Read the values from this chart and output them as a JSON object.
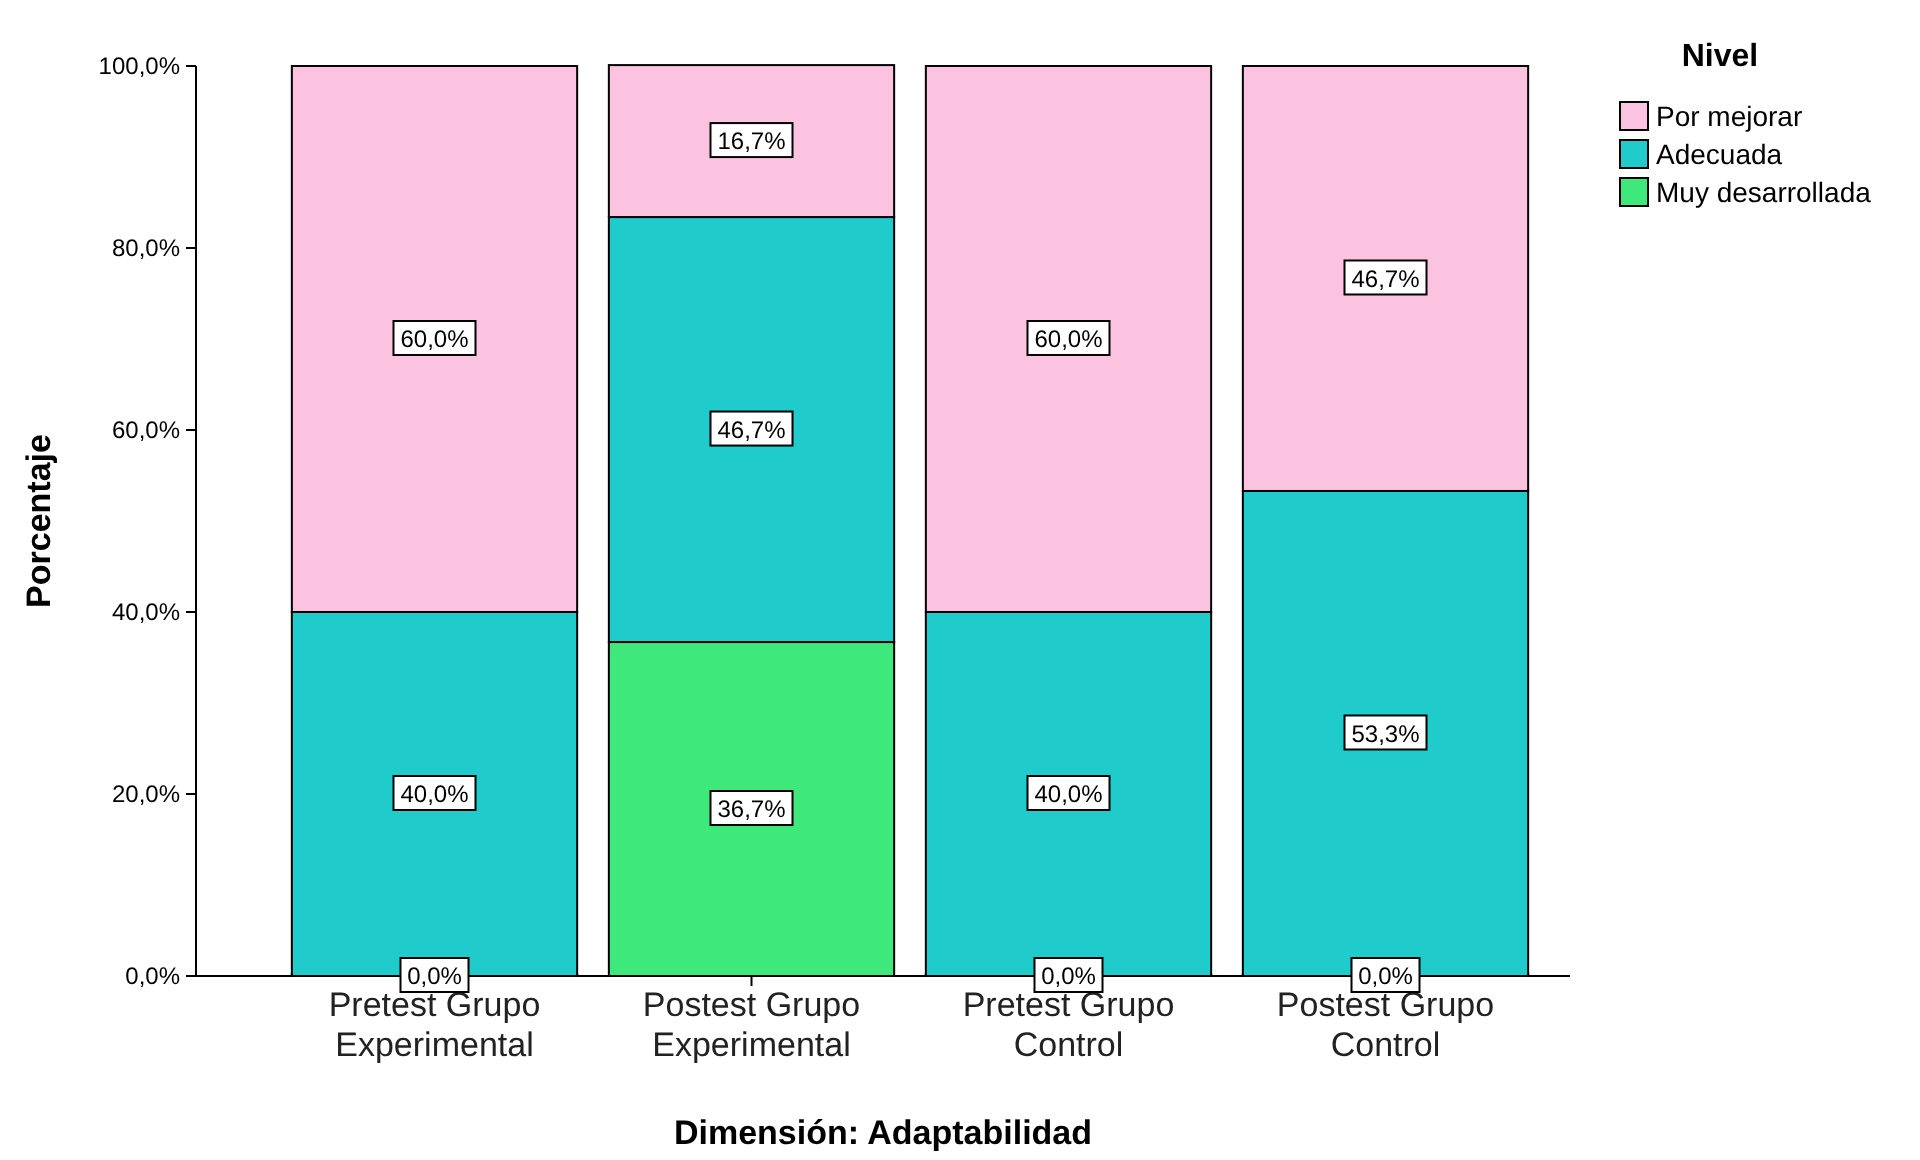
{
  "chart_data": {
    "type": "bar",
    "stacked": true,
    "xlabel": "Dimensión: Adaptabilidad",
    "ylabel": "Porcentaje",
    "legend_title": "Nivel",
    "legend": "top right",
    "categories": [
      "Pretest Grupo Experimental",
      "Postest Grupo Experimental",
      "Pretest Grupo Control",
      "Postest Grupo Control"
    ],
    "series": [
      {
        "name": "Muy desarrollada",
        "color": "#3fe87a",
        "values": [
          0,
          36.7,
          0,
          0
        ],
        "value_labels": [
          "0,0%",
          "36,7%",
          "0,0%",
          "0,0%"
        ]
      },
      {
        "name": "Adecuada",
        "color": "#1fcbcb",
        "values": [
          40,
          46.7,
          40,
          53.3
        ],
        "value_labels": [
          "40,0%",
          "46,7%",
          "40,0%",
          "53,3%"
        ]
      },
      {
        "name": "Por mejorar",
        "color": "#fbc3e0",
        "values": [
          60,
          16.7,
          60,
          46.7
        ],
        "value_labels": [
          "60,0%",
          "16,7%",
          "60,0%",
          "46,7%"
        ]
      }
    ],
    "ylim": [
      0,
      100
    ],
    "yticks": [
      {
        "value": 0,
        "label": "0,0%"
      },
      {
        "value": 20,
        "label": "20,0%"
      },
      {
        "value": 40,
        "label": "40,0%"
      },
      {
        "value": 60,
        "label": "60,0%"
      },
      {
        "value": 80,
        "label": "80,0%"
      },
      {
        "value": 100,
        "label": "100,0%"
      }
    ]
  }
}
